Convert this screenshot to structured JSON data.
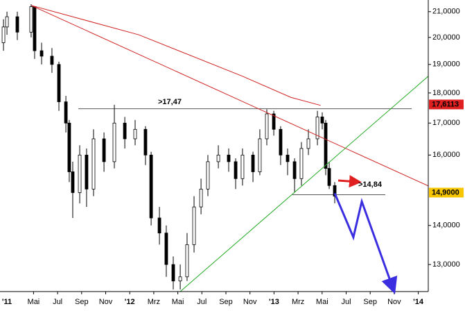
{
  "chart_data": {
    "type": "candlestick",
    "log_scale": true,
    "xlim": [
      1.21,
      36.83
    ],
    "ylim": [
      12.35,
      21.47
    ],
    "xticks": [
      {
        "value": 0,
        "label": "'11"
      },
      {
        "value": 4,
        "label": "Mai"
      },
      {
        "value": 6,
        "label": "Jul"
      },
      {
        "value": 8,
        "label": "Sep"
      },
      {
        "value": 10,
        "label": "Nov"
      },
      {
        "value": 12,
        "label": "'12"
      },
      {
        "value": 14,
        "label": "Mrz"
      },
      {
        "value": 16,
        "label": "Mai"
      },
      {
        "value": 18,
        "label": "Jul"
      },
      {
        "value": 20,
        "label": "Sep"
      },
      {
        "value": 22,
        "label": "Nov"
      },
      {
        "value": 24,
        "label": "'13"
      },
      {
        "value": 26,
        "label": "Mrz"
      },
      {
        "value": 28,
        "label": "Mai"
      },
      {
        "value": 30,
        "label": "Jul"
      },
      {
        "value": 32,
        "label": "Sep"
      },
      {
        "value": 34,
        "label": "Nov"
      },
      {
        "value": 36,
        "label": "'14"
      }
    ],
    "yticks": [
      {
        "value": 13,
        "label": "13,0000"
      },
      {
        "value": 14,
        "label": "14,0000"
      },
      {
        "value": 16,
        "label": "16,0000"
      },
      {
        "value": 17,
        "label": "17,0000"
      },
      {
        "value": 18,
        "label": "18,0000"
      },
      {
        "value": 19,
        "label": "19,0000"
      },
      {
        "value": 20,
        "label": "20,0000"
      },
      {
        "value": 21,
        "label": "21,0000"
      }
    ],
    "price_labels": [
      {
        "value": 17.6113,
        "label": "17,6113",
        "color": "#e02020",
        "text_color": "#ffffff"
      },
      {
        "value": 14.9,
        "label": "14,9000",
        "color": "#f7c600",
        "text_color": "#000000"
      }
    ],
    "candles": {
      "up_color": "#ffffff",
      "down_color": "#000000",
      "x": [
        1.5,
        1.79,
        2.65,
        3.8,
        4.09,
        4.67,
        5.53,
        6.11,
        6.69,
        6.97,
        7.26,
        7.84,
        8.41,
        8.99,
        9.86,
        10.72,
        11.59,
        12.45,
        13.31,
        13.78,
        14.47,
        15.04,
        15.62,
        16.2,
        16.77,
        17.35,
        17.93,
        18.5,
        19.37,
        20.23,
        20.81,
        21.38,
        22.25,
        22.82,
        23.4,
        23.98,
        24.55,
        25.13,
        25.71,
        26.28,
        26.86,
        27.61,
        28.01,
        28.3,
        28.59,
        29.05
      ],
      "open": [
        19.8,
        20.4,
        20.8,
        20.2,
        21.2,
        19.5,
        19.3,
        19.0,
        17.7,
        17.0,
        15.5,
        14.9,
        16.0,
        15.0,
        16.5,
        15.8,
        17.0,
        16.5,
        16.8,
        16.0,
        14.2,
        13.8,
        13.0,
        12.6,
        12.7,
        13.5,
        14.5,
        15.0,
        15.8,
        16.0,
        15.8,
        15.3,
        16.0,
        15.5,
        16.5,
        17.3,
        16.8,
        16.0,
        15.8,
        15.3,
        16.2,
        16.5,
        17.2,
        17.0,
        15.6,
        15.1
      ],
      "high": [
        20.7,
        21.0,
        21.0,
        21.3,
        21.2,
        19.8,
        19.6,
        19.1,
        17.9,
        17.1,
        15.8,
        16.3,
        16.2,
        16.8,
        16.7,
        17.6,
        17.2,
        17.1,
        16.9,
        16.1,
        14.5,
        14.0,
        13.2,
        13.0,
        13.8,
        14.8,
        15.3,
        16.0,
        16.3,
        16.2,
        15.9,
        16.2,
        16.1,
        16.8,
        17.45,
        17.4,
        16.9,
        16.2,
        15.9,
        16.4,
        16.8,
        17.4,
        17.35,
        17.1,
        15.8,
        15.2
      ],
      "low": [
        19.5,
        20.1,
        19.9,
        20.0,
        19.2,
        19.0,
        18.7,
        17.4,
        16.7,
        15.2,
        14.2,
        14.6,
        14.5,
        14.8,
        15.5,
        15.6,
        16.2,
        16.3,
        15.7,
        14.0,
        13.5,
        12.7,
        12.4,
        12.4,
        12.6,
        13.3,
        14.3,
        14.8,
        15.6,
        15.5,
        15.0,
        15.1,
        15.2,
        15.4,
        16.3,
        16.6,
        15.7,
        15.4,
        14.9,
        15.1,
        16.0,
        16.3,
        16.8,
        15.4,
        15.0,
        14.6
      ],
      "close": [
        20.4,
        20.8,
        20.2,
        21.2,
        19.5,
        19.3,
        19.0,
        17.7,
        17.0,
        15.5,
        14.9,
        16.0,
        15.0,
        16.5,
        15.8,
        17.0,
        16.5,
        16.8,
        16.0,
        14.2,
        13.8,
        13.0,
        12.6,
        12.7,
        13.5,
        14.5,
        15.0,
        15.8,
        16.0,
        15.8,
        15.3,
        16.0,
        15.5,
        16.5,
        17.3,
        16.8,
        16.0,
        15.8,
        15.3,
        16.2,
        16.5,
        17.2,
        17.0,
        15.6,
        15.1,
        14.8
      ]
    },
    "lines": [
      {
        "color": "#d02020",
        "x": [
          3.8,
          12.74,
          21.38,
          25.4,
          27.88
        ],
        "values": [
          21.25,
          20.1,
          18.58,
          17.85,
          17.58
        ]
      },
      {
        "color": "#d02020",
        "x": [
          3.8,
          36.83
        ],
        "values": [
          21.25,
          15.09
        ]
      },
      {
        "color": "#22aa22",
        "x": [
          16.2,
          36.83
        ],
        "values": [
          12.35,
          18.58
        ]
      },
      {
        "color": "#3a2ee0",
        "x": [
          29.05,
          30.6,
          31.3,
          33.89
        ],
        "values": [
          14.88,
          13.69,
          14.65,
          12.43
        ],
        "arrow": true
      }
    ],
    "levels": [
      {
        "value": 17.47,
        "x": [
          7.72,
          35.45
        ],
        "color": "#555555"
      },
      {
        "value": 14.84,
        "x": [
          25.53,
          33.26
        ],
        "color": "#555555"
      }
    ],
    "annotations": [
      {
        "text": ">17,47",
        "color": "#2a5cc8"
      },
      {
        "text": ">14,84",
        "color": "#e02020"
      }
    ]
  }
}
